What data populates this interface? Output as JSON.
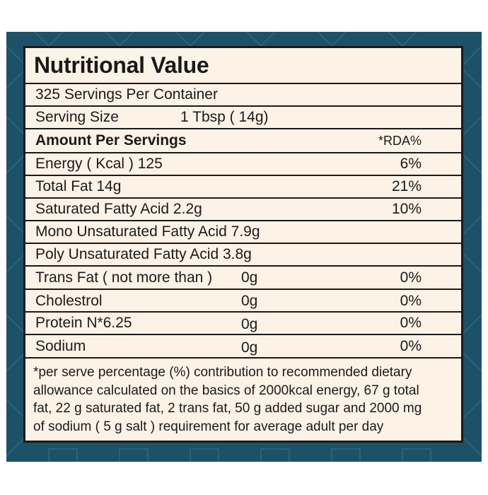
{
  "colors": {
    "background": "#1d5168",
    "panel": "#fdf2e6",
    "ink": "#1a1a1a"
  },
  "title": "Nutritional Value",
  "servings_per_container": "325 Servings Per Container",
  "serving_size": {
    "label": "Serving Size",
    "value": "1 Tbsp ( 14g)"
  },
  "amount_header": {
    "label": "Amount Per Servings",
    "rda_label": "*RDA%"
  },
  "nutrients": [
    {
      "label": "Energy  ( Kcal ) 125",
      "amount": "",
      "rda": "6%"
    },
    {
      "label": "Total Fat 14g",
      "amount": "",
      "rda": "21%"
    },
    {
      "label": "Saturated Fatty Acid 2.2g",
      "amount": "",
      "rda": "10%"
    },
    {
      "label": "Mono Unsaturated Fatty Acid 7.9g",
      "amount": "",
      "rda": ""
    },
    {
      "label": "Poly Unsaturated Fatty Acid 3.8g",
      "amount": "",
      "rda": ""
    },
    {
      "label": "Trans Fat ( not more than )",
      "amount": "0g",
      "rda": "0%"
    },
    {
      "label": "Cholestrol",
      "amount": "0g",
      "rda": "0%"
    },
    {
      "label": "Protein N*6.25",
      "amount": "0g",
      "rda": "0%"
    },
    {
      "label": "Sodium",
      "amount": "0g",
      "rda": "0%"
    }
  ],
  "footnote": [
    "*per serve percentage (%) contribution to recommended dietary",
    "allowance calculated on the basics of 2000kcal energy, 67 g total",
    "fat, 22 g saturated fat, 2 trans fat, 50 g added sugar and 2000 mg",
    "of sodium ( 5 g salt ) requirement for average adult per day"
  ]
}
